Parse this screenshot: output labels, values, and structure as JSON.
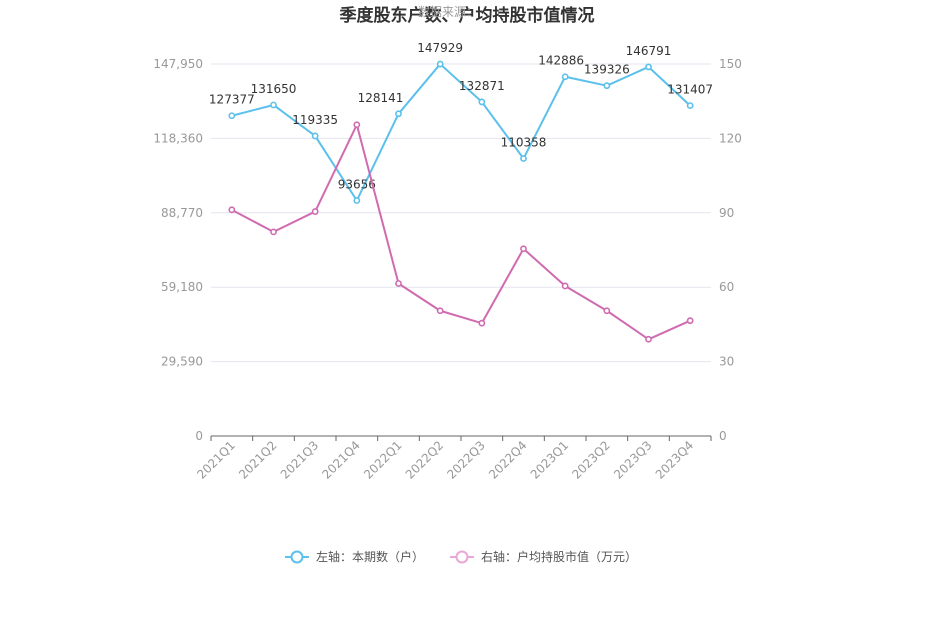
{
  "chart_data": {
    "type": "line",
    "title": "季度股东户数、户均持股市值情况",
    "watermark": "数据来源：",
    "categories": [
      "2021Q1",
      "2021Q2",
      "2021Q3",
      "2021Q4",
      "2022Q1",
      "2022Q2",
      "2022Q3",
      "2022Q4",
      "2023Q1",
      "2023Q2",
      "2023Q3",
      "2023Q4"
    ],
    "left_axis": {
      "ticks": [
        "0",
        "29,590",
        "59,180",
        "88,770",
        "118,360",
        "147,950"
      ],
      "ylim": [
        0,
        147950
      ]
    },
    "right_axis": {
      "ticks": [
        "0",
        "30",
        "60",
        "90",
        "120",
        "150"
      ],
      "ylim": [
        0,
        150
      ]
    },
    "series": [
      {
        "name": "左轴：本期数（户）",
        "axis": "left",
        "color": "#5bc0eb",
        "values": [
          127377,
          131650,
          119335,
          93656,
          128141,
          147929,
          132871,
          110358,
          142886,
          139326,
          146791,
          131407
        ],
        "labels": [
          "127377",
          "131650",
          "119335",
          "93656",
          "128141",
          "147929",
          "132871",
          "110358",
          "142886",
          "139326",
          "146791",
          "131407"
        ]
      },
      {
        "name": "右轴：户均持股市值（万元）",
        "axis": "right",
        "color": "#d06bb0",
        "values": [
          91.2,
          82.3,
          90.5,
          125.5,
          61.5,
          50.5,
          45.5,
          75.5,
          60.5,
          50.5,
          39.0,
          46.5
        ]
      }
    ],
    "grid": true,
    "legend": "bottom"
  }
}
